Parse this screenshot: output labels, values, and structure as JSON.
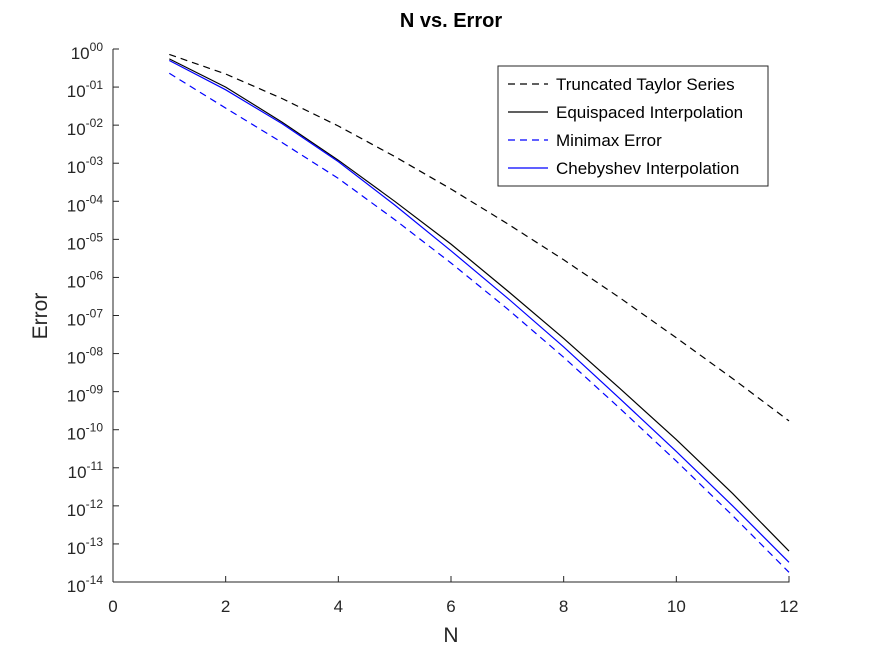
{
  "chart_data": {
    "type": "line",
    "title": "N vs. Error",
    "xlabel": "N",
    "ylabel": "Error",
    "xlim": [
      0,
      12
    ],
    "ylim": [
      1e-14,
      1
    ],
    "yscale": "log",
    "grid": false,
    "legend_position": "top-right",
    "x_ticks": [
      "0",
      "2",
      "4",
      "6",
      "8",
      "10",
      "12"
    ],
    "y_ticks": [
      {
        "base": "10",
        "exp": "00"
      },
      {
        "base": "10",
        "exp": "-01"
      },
      {
        "base": "10",
        "exp": "-02"
      },
      {
        "base": "10",
        "exp": "-03"
      },
      {
        "base": "10",
        "exp": "-04"
      },
      {
        "base": "10",
        "exp": "-05"
      },
      {
        "base": "10",
        "exp": "-06"
      },
      {
        "base": "10",
        "exp": "-07"
      },
      {
        "base": "10",
        "exp": "-08"
      },
      {
        "base": "10",
        "exp": "-09"
      },
      {
        "base": "10",
        "exp": "-10"
      },
      {
        "base": "10",
        "exp": "-11"
      },
      {
        "base": "10",
        "exp": "-12"
      },
      {
        "base": "10",
        "exp": "-13"
      },
      {
        "base": "10",
        "exp": "-14"
      }
    ],
    "x": [
      1,
      2,
      3,
      4,
      5,
      6,
      7,
      8,
      9,
      10,
      11,
      12
    ],
    "series": [
      {
        "name": "Truncated Taylor Series",
        "color": "#000000",
        "dash": "dashed",
        "values": [
          0.72,
          0.22,
          0.05,
          0.0095,
          0.0015,
          0.00021,
          2.6e-05,
          2.9e-06,
          2.9e-07,
          2.6e-08,
          2.2e-09,
          1.7e-10
        ]
      },
      {
        "name": "Equispaced Interpolation",
        "color": "#000000",
        "dash": "solid",
        "values": [
          0.55,
          0.1,
          0.012,
          0.0012,
          0.0001,
          7.5e-06,
          4.5e-07,
          2.5e-08,
          1.2e-09,
          5.5e-11,
          2.1e-12,
          6.5e-14
        ]
      },
      {
        "name": "Minimax Error",
        "color": "#0000ff",
        "dash": "dashed",
        "values": [
          0.23,
          0.028,
          0.0035,
          0.0004,
          3.3e-05,
          2.4e-06,
          1.5e-07,
          8e-09,
          3.6e-10,
          1.5e-11,
          5.5e-13,
          1.8e-14
        ]
      },
      {
        "name": "Chebyshev Interpolation",
        "color": "#0000ff",
        "dash": "solid",
        "values": [
          0.5,
          0.085,
          0.011,
          0.0011,
          8e-05,
          5e-06,
          2.9e-07,
          1.5e-08,
          6.5e-10,
          2.7e-11,
          1e-12,
          3.3e-14
        ]
      }
    ]
  }
}
